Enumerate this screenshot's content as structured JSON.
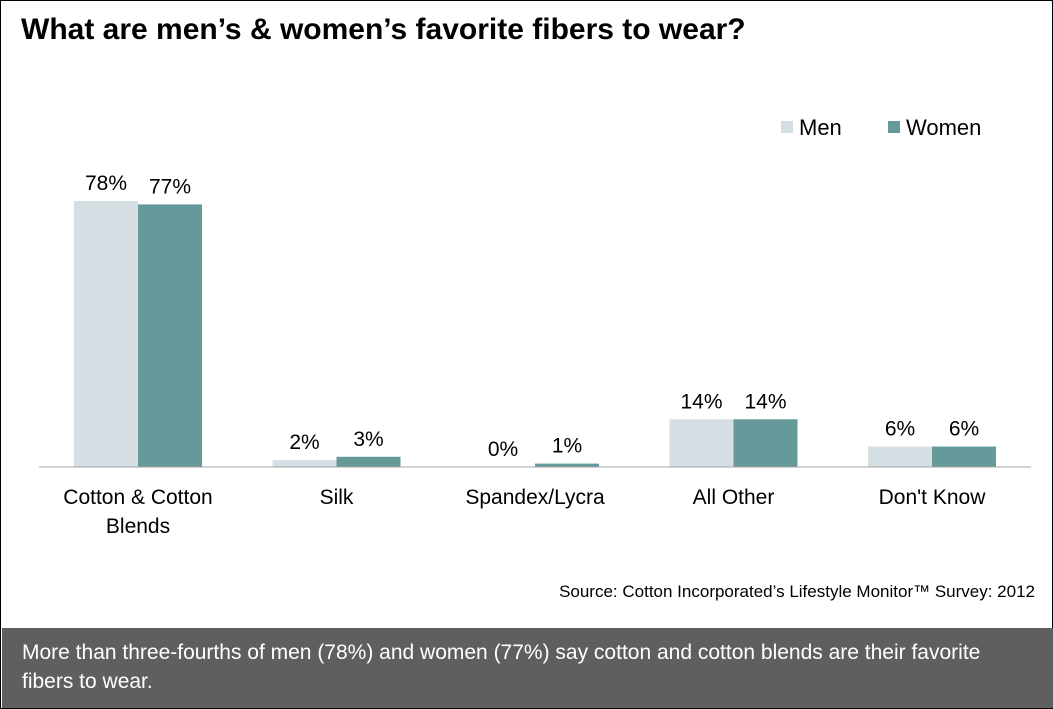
{
  "title": "What are men’s & women’s favorite fibers to wear?",
  "source": "Source: Cotton Incorporated’s Lifestyle Monitor™ Survey: 2012",
  "footer": "More than three-fourths of men (78%) and women (77%) say cotton and cotton blends are their favorite fibers to wear.",
  "colors": {
    "men": "#d5dfe3",
    "women": "#669999"
  },
  "chart_data": {
    "type": "bar",
    "title": "What are men’s & women’s favorite fibers to wear?",
    "categories": [
      [
        "Cotton & Cotton",
        "Blends"
      ],
      [
        "Silk"
      ],
      [
        "Spandex/Lycra"
      ],
      [
        "All Other"
      ],
      [
        "Don't Know"
      ]
    ],
    "series": [
      {
        "name": "Men",
        "values": [
          78,
          2,
          0,
          14,
          6
        ],
        "labels": [
          "78%",
          "2%",
          "0%",
          "14%",
          "6%"
        ]
      },
      {
        "name": "Women",
        "values": [
          77,
          3,
          1,
          14,
          6
        ],
        "labels": [
          "77%",
          "3%",
          "1%",
          "14%",
          "6%"
        ]
      }
    ],
    "legend": "top-right",
    "ylim": [
      0,
      90
    ],
    "grid": false
  }
}
